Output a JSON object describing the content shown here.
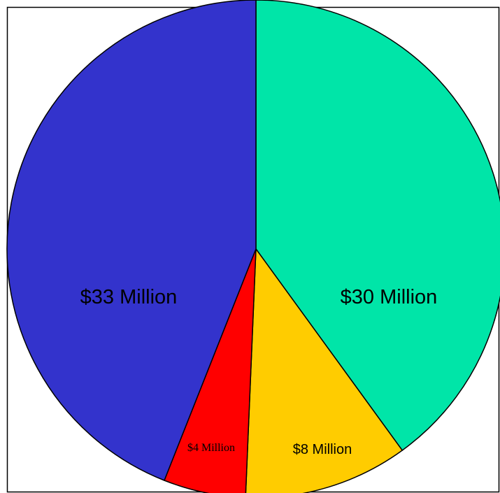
{
  "chart_data": {
    "type": "pie",
    "title": "",
    "slices": [
      {
        "label": "$30 Million",
        "value": 30,
        "color": "#00e5a8"
      },
      {
        "label": "$8 Million",
        "value": 8,
        "color": "#ffcc00"
      },
      {
        "label": "$4 Million",
        "value": 4,
        "color": "#ff0000"
      },
      {
        "label": "$33 Million",
        "value": 33,
        "color": "#3333cc"
      }
    ],
    "start_angle_deg": 0,
    "direction": "clockwise",
    "legend": "none",
    "border": true
  }
}
